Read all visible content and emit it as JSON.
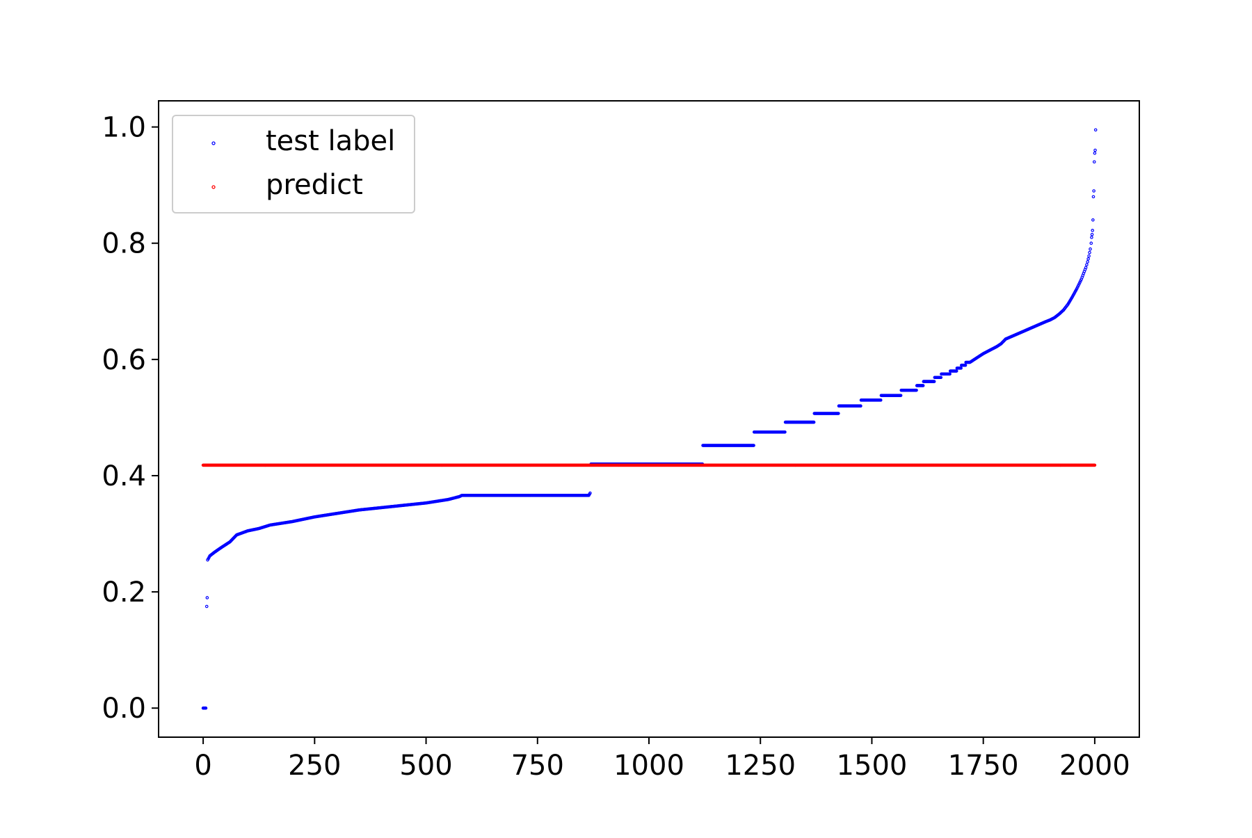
{
  "chart_data": {
    "type": "scatter",
    "title": "",
    "xlabel": "",
    "ylabel": "",
    "xlim": [
      -100,
      2100
    ],
    "ylim": [
      -0.05,
      1.045
    ],
    "xticks": [
      {
        "value": 0,
        "label": "0"
      },
      {
        "value": 250,
        "label": "250"
      },
      {
        "value": 500,
        "label": "500"
      },
      {
        "value": 750,
        "label": "750"
      },
      {
        "value": 1000,
        "label": "1000"
      },
      {
        "value": 1250,
        "label": "1250"
      },
      {
        "value": 1500,
        "label": "1500"
      },
      {
        "value": 1750,
        "label": "1750"
      },
      {
        "value": 2000,
        "label": "2000"
      }
    ],
    "yticks": [
      {
        "value": 0.0,
        "label": "0.0"
      },
      {
        "value": 0.2,
        "label": "0.2"
      },
      {
        "value": 0.4,
        "label": "0.4"
      },
      {
        "value": 0.6,
        "label": "0.6"
      },
      {
        "value": 0.8,
        "label": "0.8"
      },
      {
        "value": 1.0,
        "label": "1.0"
      }
    ],
    "grid": false,
    "legend": "upper-left",
    "series": [
      {
        "name": "test label",
        "color": "#0000ff",
        "marker": "hollow-circle",
        "points": [
          [
            0,
            0.0
          ],
          [
            3,
            0.0
          ],
          [
            6,
            0.0
          ],
          [
            8,
            0.175
          ],
          [
            9,
            0.19
          ],
          [
            10,
            0.255
          ],
          [
            15,
            0.262
          ],
          [
            25,
            0.268
          ],
          [
            40,
            0.276
          ],
          [
            60,
            0.286
          ],
          [
            75,
            0.298
          ],
          [
            100,
            0.305
          ],
          [
            125,
            0.309
          ],
          [
            150,
            0.315
          ],
          [
            175,
            0.318
          ],
          [
            200,
            0.321
          ],
          [
            225,
            0.325
          ],
          [
            250,
            0.329
          ],
          [
            275,
            0.332
          ],
          [
            300,
            0.335
          ],
          [
            325,
            0.338
          ],
          [
            350,
            0.341
          ],
          [
            375,
            0.343
          ],
          [
            400,
            0.345
          ],
          [
            425,
            0.347
          ],
          [
            450,
            0.349
          ],
          [
            475,
            0.351
          ],
          [
            500,
            0.353
          ],
          [
            525,
            0.356
          ],
          [
            550,
            0.359
          ],
          [
            575,
            0.364
          ],
          [
            580,
            0.366
          ],
          [
            650,
            0.366
          ],
          [
            700,
            0.366
          ],
          [
            750,
            0.366
          ],
          [
            800,
            0.366
          ],
          [
            865,
            0.366
          ],
          [
            868,
            0.37
          ],
          [
            870,
            0.42
          ],
          [
            920,
            0.42
          ],
          [
            970,
            0.42
          ],
          [
            1020,
            0.42
          ],
          [
            1070,
            0.42
          ],
          [
            1120,
            0.42
          ],
          [
            1121,
            0.452
          ],
          [
            1160,
            0.452
          ],
          [
            1200,
            0.452
          ],
          [
            1235,
            0.452
          ],
          [
            1236,
            0.475
          ],
          [
            1270,
            0.475
          ],
          [
            1305,
            0.475
          ],
          [
            1306,
            0.492
          ],
          [
            1340,
            0.492
          ],
          [
            1370,
            0.492
          ],
          [
            1371,
            0.507
          ],
          [
            1400,
            0.507
          ],
          [
            1425,
            0.507
          ],
          [
            1426,
            0.52
          ],
          [
            1450,
            0.52
          ],
          [
            1475,
            0.52
          ],
          [
            1476,
            0.53
          ],
          [
            1500,
            0.53
          ],
          [
            1520,
            0.53
          ],
          [
            1521,
            0.538
          ],
          [
            1545,
            0.538
          ],
          [
            1565,
            0.538
          ],
          [
            1566,
            0.547
          ],
          [
            1585,
            0.547
          ],
          [
            1600,
            0.547
          ],
          [
            1601,
            0.555
          ],
          [
            1615,
            0.555
          ],
          [
            1616,
            0.562
          ],
          [
            1640,
            0.562
          ],
          [
            1641,
            0.569
          ],
          [
            1655,
            0.569
          ],
          [
            1656,
            0.575
          ],
          [
            1675,
            0.575
          ],
          [
            1676,
            0.58
          ],
          [
            1690,
            0.58
          ],
          [
            1691,
            0.585
          ],
          [
            1700,
            0.585
          ],
          [
            1701,
            0.59
          ],
          [
            1710,
            0.59
          ],
          [
            1711,
            0.595
          ],
          [
            1720,
            0.595
          ],
          [
            1730,
            0.6
          ],
          [
            1740,
            0.605
          ],
          [
            1750,
            0.61
          ],
          [
            1760,
            0.614
          ],
          [
            1770,
            0.618
          ],
          [
            1780,
            0.622
          ],
          [
            1790,
            0.627
          ],
          [
            1800,
            0.635
          ],
          [
            1815,
            0.64
          ],
          [
            1830,
            0.645
          ],
          [
            1845,
            0.65
          ],
          [
            1860,
            0.655
          ],
          [
            1875,
            0.66
          ],
          [
            1890,
            0.665
          ],
          [
            1900,
            0.668
          ],
          [
            1910,
            0.672
          ],
          [
            1920,
            0.678
          ],
          [
            1930,
            0.685
          ],
          [
            1940,
            0.695
          ],
          [
            1950,
            0.708
          ],
          [
            1955,
            0.715
          ],
          [
            1960,
            0.722
          ],
          [
            1965,
            0.73
          ],
          [
            1970,
            0.738
          ],
          [
            1975,
            0.748
          ],
          [
            1980,
            0.758
          ],
          [
            1984,
            0.768
          ],
          [
            1987,
            0.778
          ],
          [
            1990,
            0.79
          ],
          [
            1992,
            0.8
          ],
          [
            1993,
            0.81
          ],
          [
            1994,
            0.815
          ],
          [
            1995,
            0.822
          ],
          [
            1996,
            0.84
          ],
          [
            1997,
            0.88
          ],
          [
            1998,
            0.89
          ],
          [
            1999,
            0.94
          ],
          [
            2000,
            0.955
          ],
          [
            2001,
            0.96
          ],
          [
            2002,
            0.995
          ]
        ]
      },
      {
        "name": "predict",
        "color": "#ff0000",
        "marker": "hollow-circle",
        "points": [
          [
            0,
            0.418
          ],
          [
            2000,
            0.418
          ]
        ]
      }
    ]
  }
}
